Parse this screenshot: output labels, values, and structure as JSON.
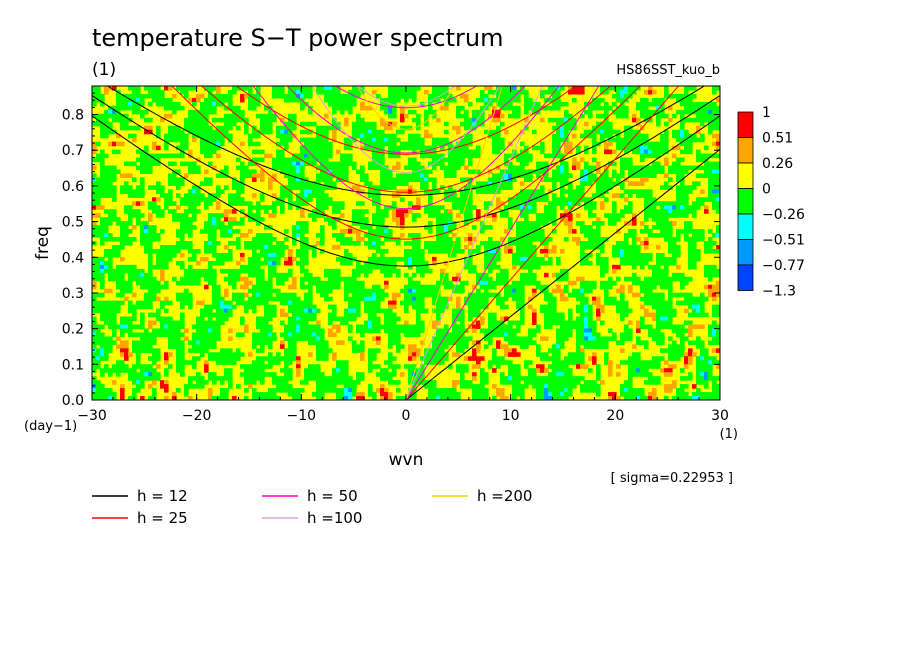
{
  "chart_data": {
    "type": "heatmap",
    "title": "temperature S−T power spectrum",
    "subtitle_left": "(1)",
    "subtitle_right": "HS86SST_kuo_b",
    "xlabel": "wvn",
    "ylabel": "freq",
    "x_unit": "(1)",
    "y_unit": "(day−1)",
    "xlim": [
      -30,
      30
    ],
    "ylim": [
      0,
      0.88
    ],
    "xticks": [
      -30,
      -20,
      -10,
      0,
      10,
      20,
      30
    ],
    "yticks": [
      0.0,
      0.1,
      0.2,
      0.3,
      0.4,
      0.5,
      0.6,
      0.7,
      0.8
    ],
    "xtick_labels": [
      "−30",
      "−20",
      "−10",
      "0",
      "10",
      "20",
      "30"
    ],
    "ytick_labels": [
      "0.0",
      "0.1",
      "0.2",
      "0.3",
      "0.4",
      "0.5",
      "0.6",
      "0.7",
      "0.8"
    ],
    "colorbar": {
      "levels": [
        "1",
        "0.51",
        "0.26",
        "0",
        "−0.26",
        "−0.51",
        "−0.77",
        "−1.3"
      ],
      "colors": [
        "#ff0000",
        "#ffa500",
        "#ffff00",
        "#00ff00",
        "#00ffff",
        "#0099ff",
        "#0044ff"
      ]
    },
    "annotation": "[ sigma=0.22953 ]",
    "series": [
      {
        "name": "h = 12",
        "color": "#000000",
        "h": 12
      },
      {
        "name": "h = 25",
        "color": "#ff0000",
        "h": 25
      },
      {
        "name": "h = 50",
        "color": "#ff00cc",
        "h": 50
      },
      {
        "name": "h =100",
        "color": "#e0a0e0",
        "h": 100
      },
      {
        "name": "h =200",
        "color": "#ffcc00",
        "h": 200
      }
    ]
  }
}
